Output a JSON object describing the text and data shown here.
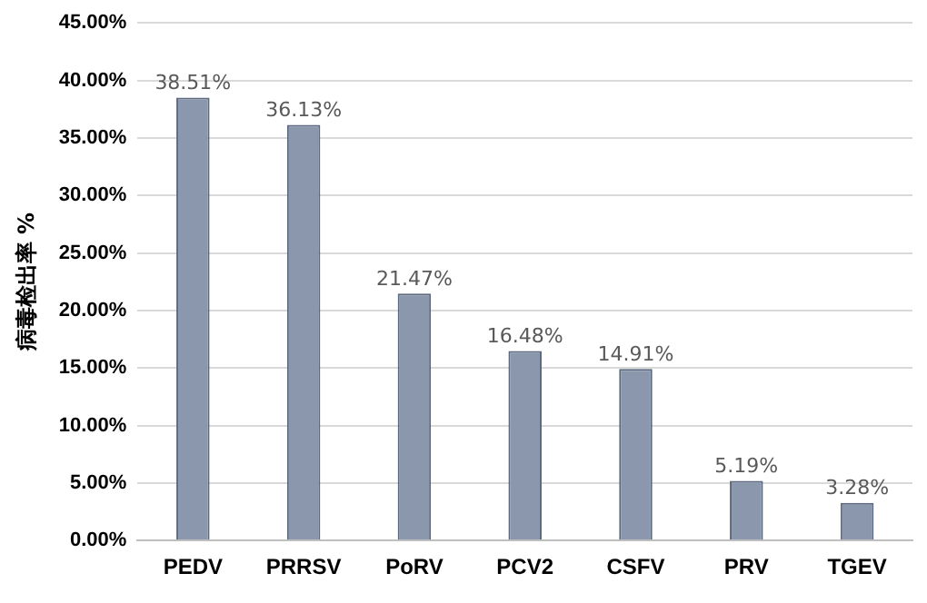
{
  "chart_data": {
    "type": "bar",
    "ylabel": "病毒检出率 %",
    "categories": [
      "PEDV",
      "PRRSV",
      "PoRV",
      "PCV2",
      "CSFV",
      "PRV",
      "TGEV"
    ],
    "values": [
      38.51,
      36.13,
      21.47,
      16.48,
      14.91,
      5.19,
      3.28
    ],
    "value_labels": [
      "38.51%",
      "36.13%",
      "21.47%",
      "16.48%",
      "14.91%",
      "5.19%",
      "3.28%"
    ],
    "color": "#8a97ad",
    "ylim": [
      0,
      45
    ],
    "yticks": [
      {
        "value": 0,
        "label": "0.00%"
      },
      {
        "value": 5,
        "label": "5.00%"
      },
      {
        "value": 10,
        "label": "10.00%"
      },
      {
        "value": 15,
        "label": "15.00%"
      },
      {
        "value": 20,
        "label": "20.00%"
      },
      {
        "value": 25,
        "label": "25.00%"
      },
      {
        "value": 30,
        "label": "30.00%"
      },
      {
        "value": 35,
        "label": "35.00%"
      },
      {
        "value": 40,
        "label": "40.00%"
      },
      {
        "value": 45,
        "label": "45.00%"
      }
    ],
    "grid": "y",
    "legend": false
  }
}
